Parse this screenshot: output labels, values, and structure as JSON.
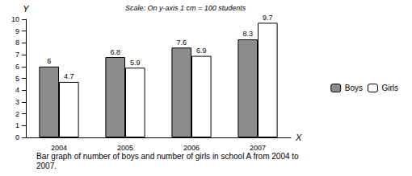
{
  "chart_data": {
    "type": "bar",
    "title": "Bar graph of number of boys and number of girls in school A from 2004 to 2007.",
    "subtitle": "Scale: On y-axis 1 cm = 100 students",
    "x_label": "X",
    "y_label": "Y",
    "categories": [
      "2004",
      "2005",
      "2006",
      "2007"
    ],
    "series": [
      {
        "name": "Boys",
        "color": "#8c8c8c",
        "values": [
          6,
          6.8,
          7.6,
          8.3
        ]
      },
      {
        "name": "Girls",
        "color": "#ffffff",
        "values": [
          4.7,
          5.9,
          6.9,
          9.7
        ]
      }
    ],
    "ylim": [
      0,
      10
    ],
    "yticks": [
      0,
      1,
      2,
      3,
      4,
      5,
      6,
      7,
      8,
      9,
      10
    ],
    "grid": false,
    "legend": "right",
    "data_labels": true
  }
}
